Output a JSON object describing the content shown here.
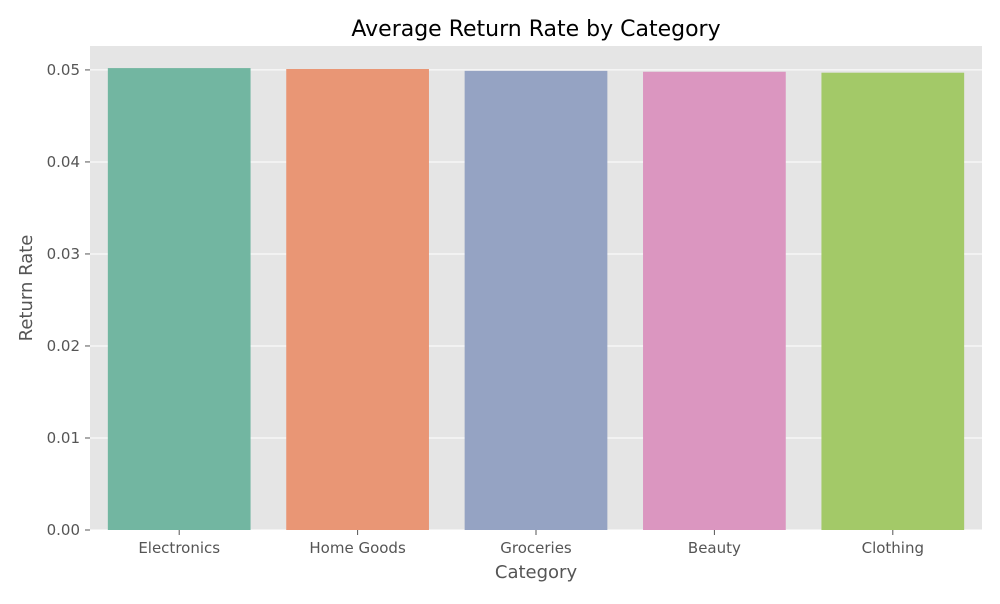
{
  "chart_data": {
    "type": "bar",
    "title": "Average Return Rate by Category",
    "xlabel": "Category",
    "ylabel": "Return Rate",
    "categories": [
      "Electronics",
      "Home Goods",
      "Groceries",
      "Beauty",
      "Clothing"
    ],
    "values": [
      0.0502,
      0.0501,
      0.0499,
      0.0498,
      0.0497
    ],
    "ylim": [
      0,
      0.0526
    ],
    "yticks": [
      "0.00",
      "0.01",
      "0.02",
      "0.03",
      "0.04",
      "0.05"
    ],
    "ytick_values": [
      0,
      0.01,
      0.02,
      0.03,
      0.04,
      0.05
    ],
    "grid": true,
    "colors": [
      "#72b6a1",
      "#e99675",
      "#95a3c3",
      "#db96c0",
      "#a3c968"
    ],
    "background": "#e5e5e5"
  }
}
